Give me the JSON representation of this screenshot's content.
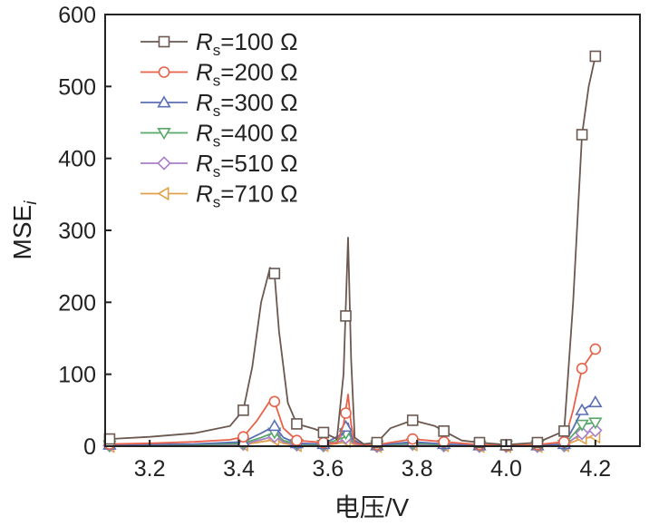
{
  "chart_data": {
    "type": "line",
    "title": "",
    "xlabel": "电压/V",
    "ylabel_main": "MSE",
    "ylabel_sub": "i",
    "xlim": [
      3.1,
      4.3
    ],
    "ylim": [
      0,
      600
    ],
    "xticks": [
      3.2,
      3.4,
      3.6,
      3.8,
      4.0,
      4.2
    ],
    "xtick_labels": [
      "3.2",
      "3.4",
      "3.6",
      "3.8",
      "4.0",
      "4.2"
    ],
    "yticks": [
      0,
      100,
      200,
      300,
      400,
      500,
      600
    ],
    "ytick_labels": [
      "0",
      "100",
      "200",
      "300",
      "400",
      "500",
      "600"
    ],
    "grid": false,
    "legend_position": "top-left",
    "series": [
      {
        "name": "Rs=100 Ω",
        "legend_prefix": "R",
        "legend_sub": "s",
        "legend_suffix": "=100 Ω",
        "color": "#6b5850",
        "marker": "square",
        "markers": [
          [
            3.11,
            10
          ],
          [
            3.41,
            50
          ],
          [
            3.48,
            240
          ],
          [
            3.53,
            31
          ],
          [
            3.59,
            19
          ],
          [
            3.64,
            181
          ],
          [
            3.71,
            5
          ],
          [
            3.79,
            36
          ],
          [
            3.86,
            21
          ],
          [
            3.94,
            5
          ],
          [
            4.0,
            2
          ],
          [
            4.07,
            5
          ],
          [
            4.13,
            21
          ],
          [
            4.17,
            433
          ],
          [
            4.2,
            542
          ]
        ],
        "curve": [
          [
            3.11,
            10
          ],
          [
            3.2,
            13
          ],
          [
            3.3,
            18
          ],
          [
            3.38,
            28
          ],
          [
            3.41,
            50
          ],
          [
            3.43,
            110
          ],
          [
            3.45,
            200
          ],
          [
            3.47,
            248
          ],
          [
            3.48,
            240
          ],
          [
            3.49,
            160
          ],
          [
            3.51,
            60
          ],
          [
            3.53,
            31
          ],
          [
            3.57,
            24
          ],
          [
            3.59,
            19
          ],
          [
            3.62,
            10
          ],
          [
            3.635,
            100
          ],
          [
            3.645,
            290
          ],
          [
            3.652,
            120
          ],
          [
            3.66,
            12
          ],
          [
            3.68,
            3
          ],
          [
            3.71,
            5
          ],
          [
            3.74,
            25
          ],
          [
            3.79,
            36
          ],
          [
            3.84,
            28
          ],
          [
            3.86,
            21
          ],
          [
            3.9,
            8
          ],
          [
            3.94,
            5
          ],
          [
            4.0,
            2
          ],
          [
            4.07,
            5
          ],
          [
            4.13,
            21
          ],
          [
            4.15,
            200
          ],
          [
            4.17,
            433
          ],
          [
            4.185,
            500
          ],
          [
            4.2,
            542
          ]
        ]
      },
      {
        "name": "Rs=200 Ω",
        "legend_prefix": "R",
        "legend_sub": "s",
        "legend_suffix": "=200 Ω",
        "color": "#e8624a",
        "marker": "circle",
        "markers": [
          [
            3.11,
            3
          ],
          [
            3.41,
            13
          ],
          [
            3.48,
            62
          ],
          [
            3.53,
            8
          ],
          [
            3.59,
            5
          ],
          [
            3.64,
            46
          ],
          [
            3.71,
            2
          ],
          [
            3.79,
            10
          ],
          [
            3.86,
            6
          ],
          [
            3.94,
            2
          ],
          [
            4.0,
            1
          ],
          [
            4.07,
            2
          ],
          [
            4.13,
            6
          ],
          [
            4.17,
            108
          ],
          [
            4.2,
            135
          ]
        ],
        "curve": [
          [
            3.11,
            3
          ],
          [
            3.2,
            4
          ],
          [
            3.3,
            6
          ],
          [
            3.38,
            9
          ],
          [
            3.41,
            13
          ],
          [
            3.44,
            35
          ],
          [
            3.47,
            63
          ],
          [
            3.48,
            62
          ],
          [
            3.5,
            25
          ],
          [
            3.53,
            8
          ],
          [
            3.59,
            5
          ],
          [
            3.62,
            4
          ],
          [
            3.635,
            30
          ],
          [
            3.645,
            72
          ],
          [
            3.652,
            30
          ],
          [
            3.66,
            5
          ],
          [
            3.68,
            1
          ],
          [
            3.71,
            2
          ],
          [
            3.79,
            10
          ],
          [
            3.86,
            6
          ],
          [
            3.94,
            2
          ],
          [
            4.0,
            1
          ],
          [
            4.07,
            2
          ],
          [
            4.13,
            6
          ],
          [
            4.15,
            50
          ],
          [
            4.17,
            108
          ],
          [
            4.2,
            135
          ]
        ]
      },
      {
        "name": "Rs=300 Ω",
        "legend_prefix": "R",
        "legend_sub": "s",
        "legend_suffix": "=300 Ω",
        "color": "#5b6fb5",
        "marker": "triangle-up",
        "markers": [
          [
            3.11,
            2
          ],
          [
            3.41,
            6
          ],
          [
            3.48,
            28
          ],
          [
            3.53,
            4
          ],
          [
            3.59,
            3
          ],
          [
            3.64,
            27
          ],
          [
            3.71,
            1
          ],
          [
            3.79,
            6
          ],
          [
            3.86,
            3
          ],
          [
            3.94,
            1
          ],
          [
            4.0,
            1
          ],
          [
            4.07,
            1
          ],
          [
            4.13,
            3
          ],
          [
            4.17,
            50
          ],
          [
            4.2,
            61
          ]
        ],
        "curve": [
          [
            3.11,
            2
          ],
          [
            3.3,
            3
          ],
          [
            3.41,
            6
          ],
          [
            3.45,
            18
          ],
          [
            3.48,
            28
          ],
          [
            3.5,
            12
          ],
          [
            3.53,
            4
          ],
          [
            3.59,
            3
          ],
          [
            3.635,
            18
          ],
          [
            3.645,
            32
          ],
          [
            3.655,
            10
          ],
          [
            3.68,
            1
          ],
          [
            3.71,
            1
          ],
          [
            3.79,
            6
          ],
          [
            3.86,
            3
          ],
          [
            3.94,
            1
          ],
          [
            4.0,
            1
          ],
          [
            4.07,
            1
          ],
          [
            4.13,
            3
          ],
          [
            4.15,
            25
          ],
          [
            4.17,
            50
          ],
          [
            4.2,
            61
          ]
        ]
      },
      {
        "name": "Rs=400 Ω",
        "legend_prefix": "R",
        "legend_sub": "s",
        "legend_suffix": "=400 Ω",
        "color": "#5aa86a",
        "marker": "triangle-down",
        "markers": [
          [
            3.11,
            1
          ],
          [
            3.41,
            4
          ],
          [
            3.48,
            19
          ],
          [
            3.53,
            3
          ],
          [
            3.59,
            2
          ],
          [
            3.64,
            18
          ],
          [
            3.71,
            1
          ],
          [
            3.79,
            4
          ],
          [
            3.86,
            2
          ],
          [
            3.94,
            1
          ],
          [
            4.0,
            1
          ],
          [
            4.07,
            1
          ],
          [
            4.13,
            2
          ],
          [
            4.17,
            30
          ],
          [
            4.2,
            33
          ]
        ],
        "curve": [
          [
            3.11,
            1
          ],
          [
            3.3,
            2
          ],
          [
            3.41,
            4
          ],
          [
            3.45,
            12
          ],
          [
            3.48,
            19
          ],
          [
            3.5,
            8
          ],
          [
            3.53,
            3
          ],
          [
            3.59,
            2
          ],
          [
            3.635,
            12
          ],
          [
            3.645,
            22
          ],
          [
            3.655,
            7
          ],
          [
            3.68,
            1
          ],
          [
            3.71,
            1
          ],
          [
            3.79,
            4
          ],
          [
            3.86,
            2
          ],
          [
            3.94,
            1
          ],
          [
            4.0,
            1
          ],
          [
            4.07,
            1
          ],
          [
            4.13,
            2
          ],
          [
            4.15,
            16
          ],
          [
            4.17,
            30
          ],
          [
            4.2,
            33
          ]
        ]
      },
      {
        "name": "Rs=510 Ω",
        "legend_prefix": "R",
        "legend_sub": "s",
        "legend_suffix": "=510 Ω",
        "color": "#a97fc9",
        "marker": "diamond",
        "markers": [
          [
            3.11,
            1
          ],
          [
            3.41,
            3
          ],
          [
            3.48,
            14
          ],
          [
            3.53,
            2
          ],
          [
            3.59,
            1
          ],
          [
            3.64,
            12
          ],
          [
            3.71,
            0
          ],
          [
            3.79,
            3
          ],
          [
            3.86,
            1
          ],
          [
            3.94,
            0
          ],
          [
            4.0,
            0
          ],
          [
            4.07,
            0
          ],
          [
            4.13,
            1
          ],
          [
            4.17,
            18
          ],
          [
            4.2,
            22
          ]
        ],
        "curve": [
          [
            3.11,
            1
          ],
          [
            3.3,
            1
          ],
          [
            3.41,
            3
          ],
          [
            3.45,
            9
          ],
          [
            3.48,
            14
          ],
          [
            3.5,
            6
          ],
          [
            3.53,
            2
          ],
          [
            3.59,
            1
          ],
          [
            3.635,
            8
          ],
          [
            3.645,
            15
          ],
          [
            3.655,
            5
          ],
          [
            3.68,
            0
          ],
          [
            3.71,
            0
          ],
          [
            3.79,
            3
          ],
          [
            3.86,
            1
          ],
          [
            3.94,
            0
          ],
          [
            4.0,
            0
          ],
          [
            4.07,
            0
          ],
          [
            4.13,
            1
          ],
          [
            4.15,
            10
          ],
          [
            4.17,
            18
          ],
          [
            4.2,
            22
          ]
        ]
      },
      {
        "name": "Rs=710 Ω",
        "legend_prefix": "R",
        "legend_sub": "s",
        "legend_suffix": "=710 Ω",
        "color": "#e0a24a",
        "marker": "triangle-left",
        "markers": [
          [
            3.11,
            0
          ],
          [
            3.41,
            2
          ],
          [
            3.48,
            9
          ],
          [
            3.53,
            1
          ],
          [
            3.59,
            1
          ],
          [
            3.64,
            7
          ],
          [
            3.71,
            0
          ],
          [
            3.79,
            2
          ],
          [
            3.86,
            1
          ],
          [
            3.94,
            0
          ],
          [
            4.0,
            0
          ],
          [
            4.07,
            0
          ],
          [
            4.13,
            1
          ],
          [
            4.17,
            11
          ],
          [
            4.2,
            13
          ]
        ],
        "curve": [
          [
            3.11,
            0
          ],
          [
            3.3,
            1
          ],
          [
            3.41,
            2
          ],
          [
            3.45,
            6
          ],
          [
            3.48,
            9
          ],
          [
            3.5,
            4
          ],
          [
            3.53,
            1
          ],
          [
            3.59,
            1
          ],
          [
            3.635,
            5
          ],
          [
            3.645,
            9
          ],
          [
            3.655,
            3
          ],
          [
            3.68,
            0
          ],
          [
            3.71,
            0
          ],
          [
            3.79,
            2
          ],
          [
            3.86,
            1
          ],
          [
            3.94,
            0
          ],
          [
            4.0,
            0
          ],
          [
            4.07,
            0
          ],
          [
            4.13,
            1
          ],
          [
            4.15,
            6
          ],
          [
            4.17,
            11
          ],
          [
            4.2,
            13
          ]
        ]
      }
    ]
  }
}
